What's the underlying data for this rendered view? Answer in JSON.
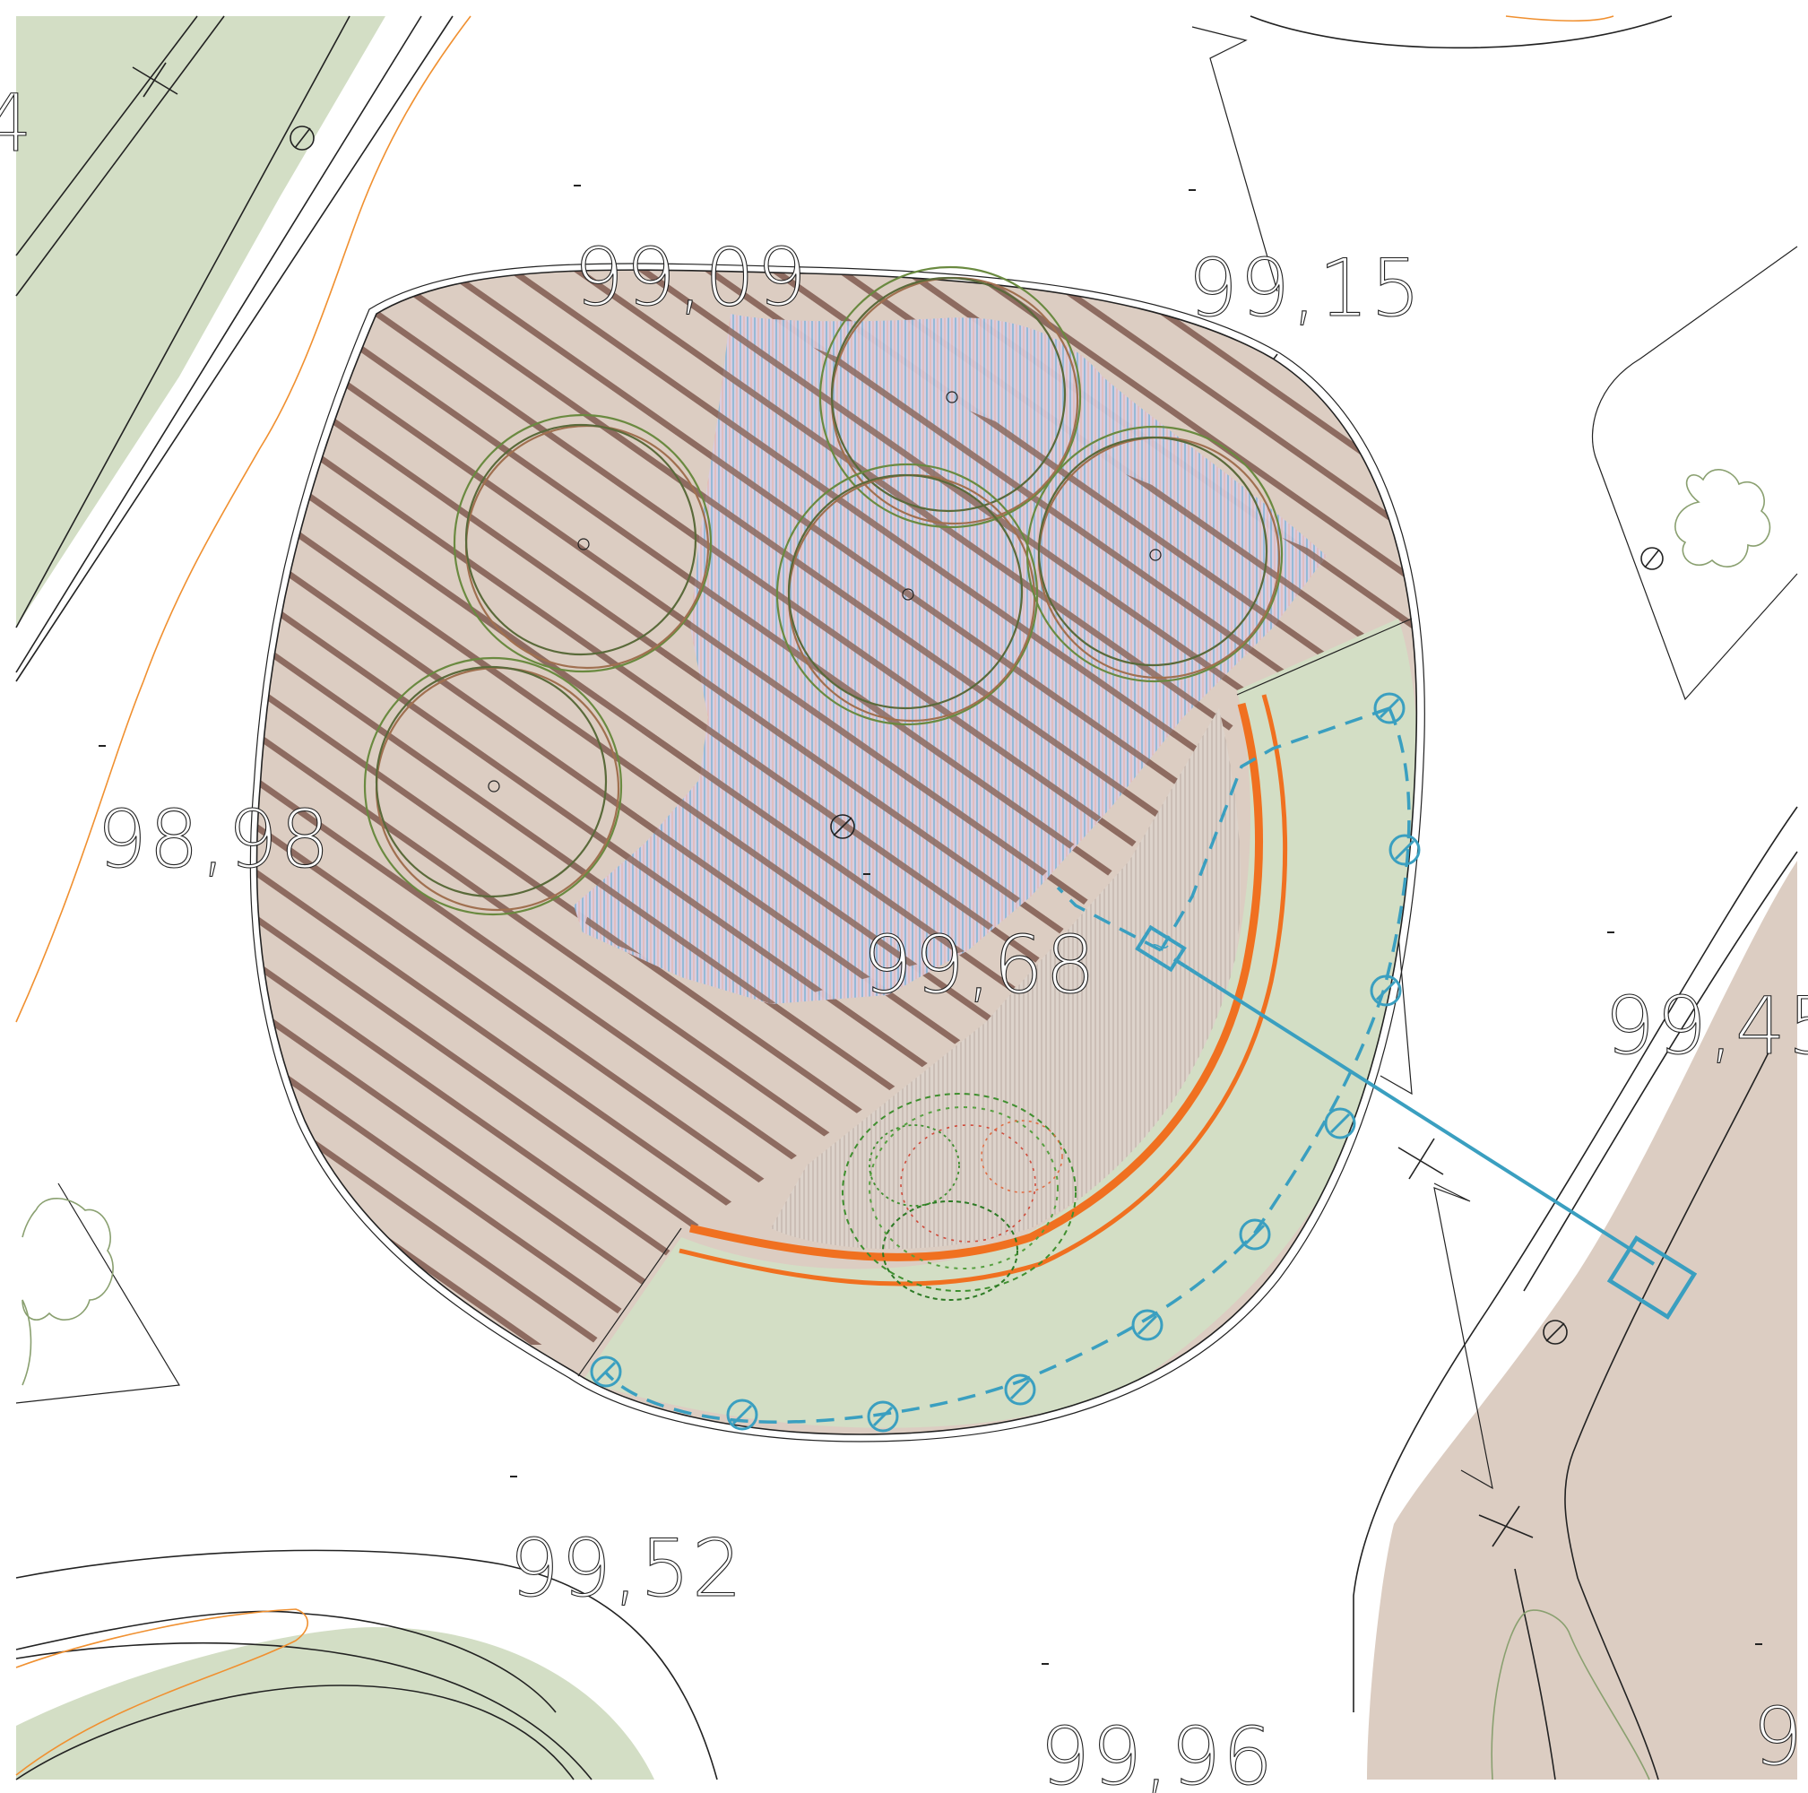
{
  "elevations": [
    {
      "id": "spot-elev-1",
      "text": "99,09"
    },
    {
      "id": "spot-elev-2",
      "text": "99,15"
    },
    {
      "id": "spot-elev-3",
      "text": "98,98"
    },
    {
      "id": "spot-elev-4",
      "text": "99,68"
    },
    {
      "id": "spot-elev-5",
      "text": "99,45"
    },
    {
      "id": "spot-elev-6",
      "text": "99,52"
    },
    {
      "id": "spot-elev-7",
      "text": "99,96"
    },
    {
      "id": "spot-elev-8",
      "text": "9"
    },
    {
      "id": "spot-elev-9",
      "text": "4"
    }
  ],
  "colors": {
    "lawn": "#d3dec5",
    "paving": "#dccdc2",
    "slats": "#8d6b60",
    "planting_blue": "#7fb4d6",
    "planting_red": "#e87a55",
    "edging_orange": "#f07020",
    "irrigation_blue": "#3a9fc0",
    "shrub_green": "#3f8f2f",
    "tree_canopy": "#7a8a3a",
    "contour_orange": "#f09030"
  },
  "icons": [
    "tree-canopy-icon",
    "light-fixture-icon",
    "manhole-icon",
    "cross-marker-icon",
    "shrub-icon"
  ]
}
